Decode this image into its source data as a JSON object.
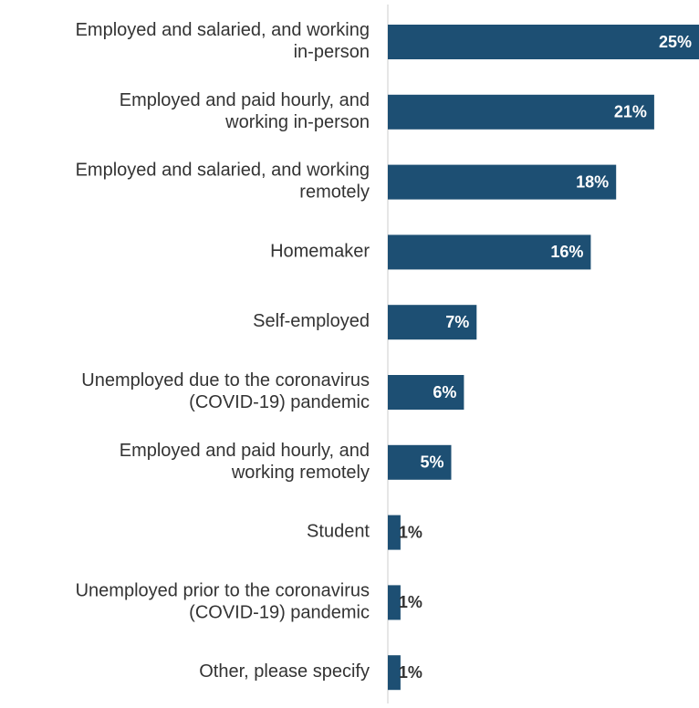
{
  "chart_data": {
    "type": "bar",
    "orientation": "horizontal",
    "categories": [
      "Employed and salaried, and working in-person",
      "Employed and paid hourly, and working in-person",
      "Employed and salaried, and working remotely",
      "Homemaker",
      "Self-employed",
      "Unemployed due to the coronavirus (COVID-19) pandemic",
      "Employed and paid hourly, and working remotely",
      "Student",
      "Unemployed prior to the coronavirus (COVID-19) pandemic",
      "Other, please specify"
    ],
    "values": [
      25,
      21,
      18,
      16,
      7,
      6,
      5,
      1,
      1,
      1
    ],
    "value_labels": [
      "25%",
      "21%",
      "18%",
      "16%",
      "7%",
      "6%",
      "5%",
      "1%",
      "1%",
      "1%"
    ],
    "color": "#1d4f73"
  }
}
